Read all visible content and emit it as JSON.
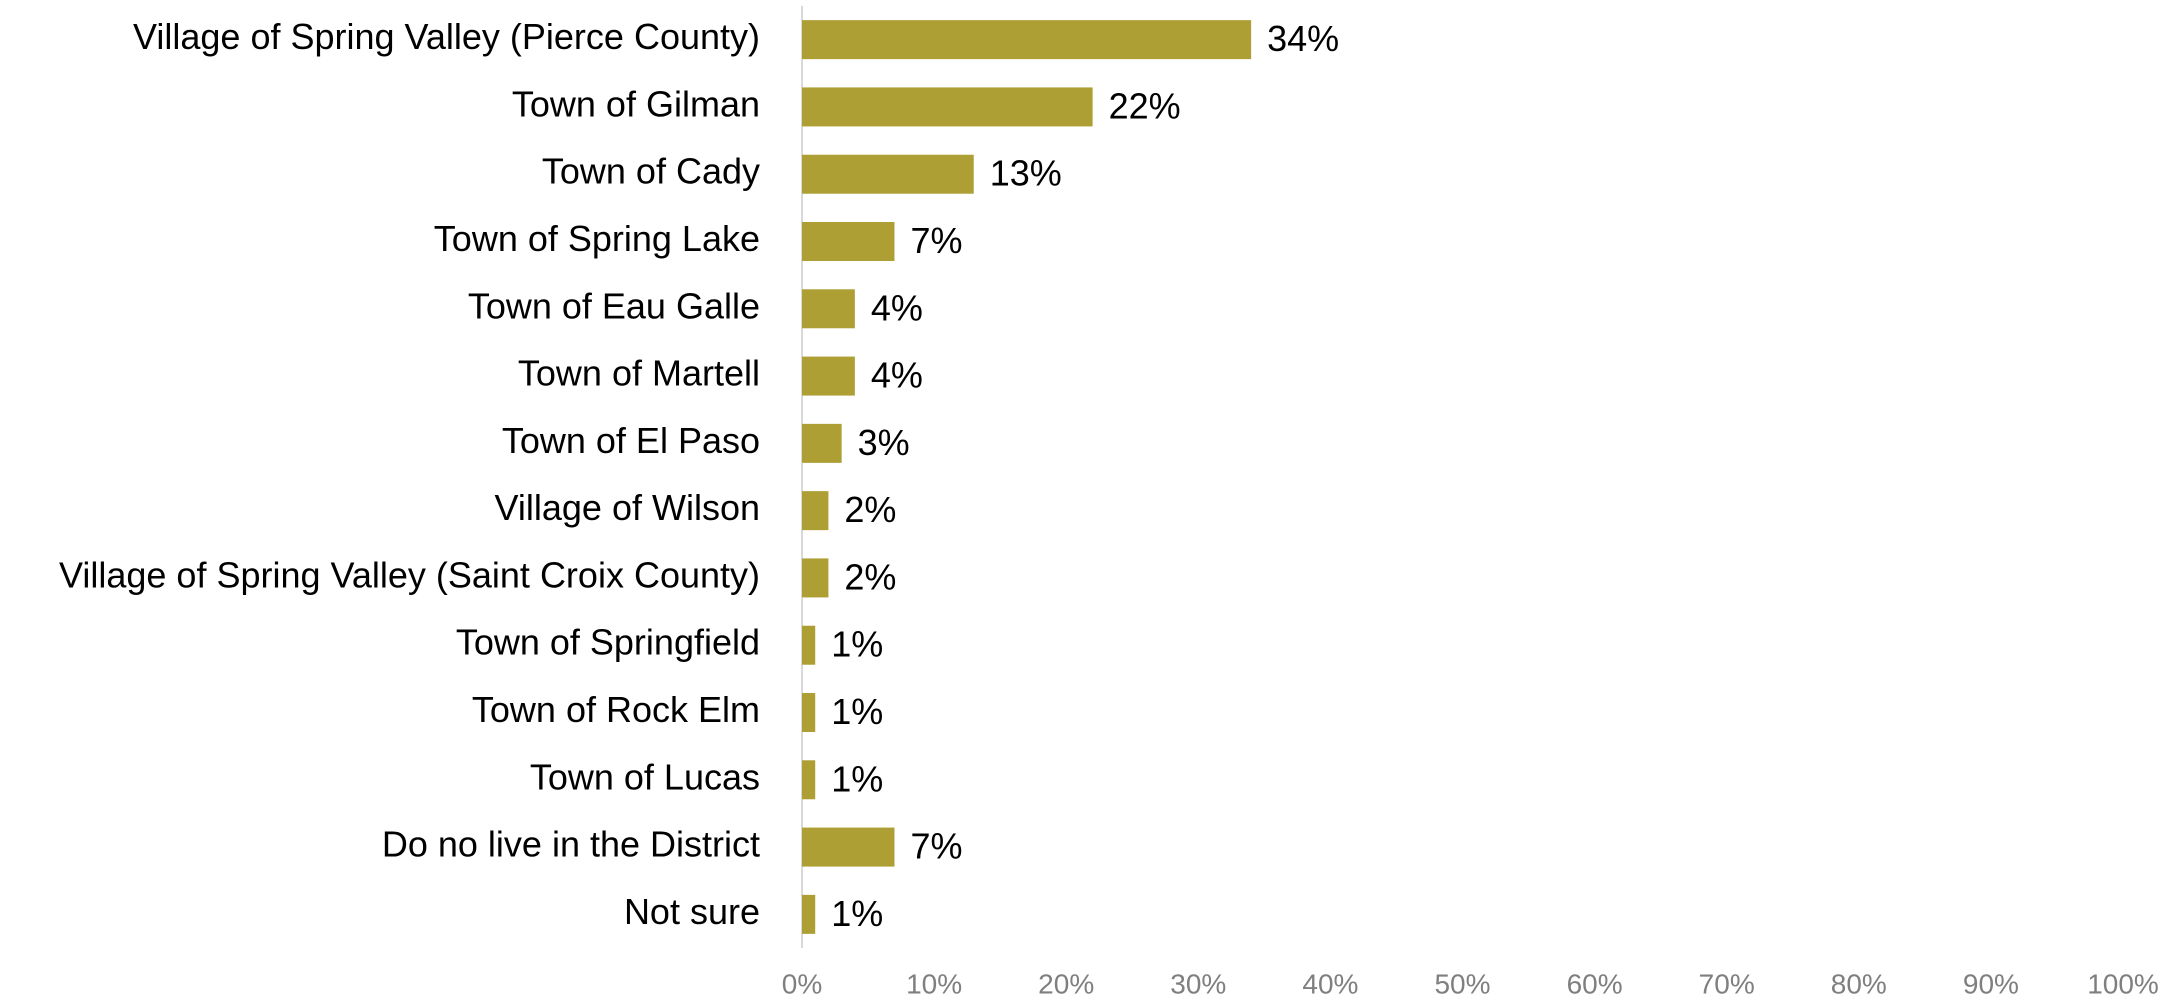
{
  "chart_data": {
    "type": "bar",
    "orientation": "horizontal",
    "categories": [
      "Village of Spring Valley (Pierce County)",
      "Town of Gilman",
      "Town of Cady",
      "Town of Spring Lake",
      "Town of Eau Galle",
      "Town of Martell",
      "Town of El Paso",
      "Village of Wilson",
      "Village of Spring Valley (Saint Croix County)",
      "Town of Springfield",
      "Town of Rock Elm",
      "Town of Lucas",
      "Do no live in the District",
      "Not sure"
    ],
    "values": [
      34,
      22,
      13,
      7,
      4,
      4,
      3,
      2,
      2,
      1,
      1,
      1,
      7,
      1
    ],
    "value_labels": [
      "34%",
      "22%",
      "13%",
      "7%",
      "4%",
      "4%",
      "3%",
      "2%",
      "2%",
      "1%",
      "1%",
      "1%",
      "7%",
      "1%"
    ],
    "color": "#ad9f34",
    "xlim": [
      0,
      100
    ],
    "xticks": [
      {
        "value": 0,
        "label": "0%"
      },
      {
        "value": 10,
        "label": "10%"
      },
      {
        "value": 20,
        "label": "20%"
      },
      {
        "value": 30,
        "label": "30%"
      },
      {
        "value": 40,
        "label": "40%"
      },
      {
        "value": 50,
        "label": "50%"
      },
      {
        "value": 60,
        "label": "60%"
      },
      {
        "value": 70,
        "label": "70%"
      },
      {
        "value": 80,
        "label": "80%"
      },
      {
        "value": 90,
        "label": "90%"
      },
      {
        "value": 100,
        "label": "100%"
      }
    ],
    "grid": false
  }
}
